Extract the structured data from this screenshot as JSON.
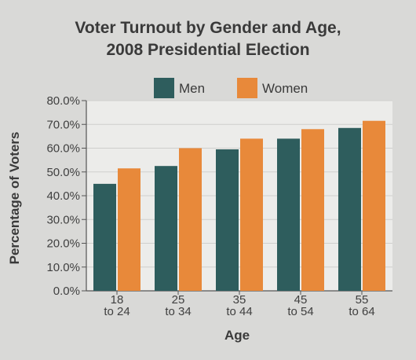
{
  "chart_data": {
    "type": "bar",
    "title_lines": [
      "Voter Turnout by Gender and Age,",
      "2008 Presidential Election"
    ],
    "xlabel": "Age",
    "ylabel": "Percentage of Voters",
    "categories": [
      [
        "18",
        "to 24"
      ],
      [
        "25",
        "to 34"
      ],
      [
        "35",
        "to 44"
      ],
      [
        "45",
        "to 54"
      ],
      [
        "55",
        "to 64"
      ]
    ],
    "series": [
      {
        "name": "Men",
        "color": "#2e5d5d",
        "values": [
          45.0,
          52.5,
          59.5,
          64.0,
          68.5
        ]
      },
      {
        "name": "Women",
        "color": "#e8893a",
        "values": [
          51.5,
          60.0,
          64.0,
          68.0,
          71.5
        ]
      }
    ],
    "ylim": [
      0,
      80
    ],
    "yticks": [
      "0.0%",
      "10.0%",
      "20.0%",
      "30.0%",
      "40.0%",
      "50.0%",
      "60.0%",
      "70.0%",
      "80.0%"
    ],
    "ytick_values": [
      0,
      10,
      20,
      30,
      40,
      50,
      60,
      70,
      80
    ],
    "grid": true,
    "legend_position": "top-center"
  }
}
